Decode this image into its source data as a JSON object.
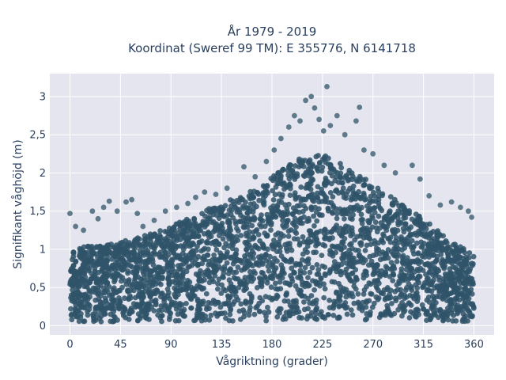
{
  "chart_data": {
    "type": "scatter",
    "title_lines": [
      "År 1979 - 2019",
      "Koordinat (Sweref 99 TM): E 355776, N 6141718"
    ],
    "xlabel": "Vågriktning (grader)",
    "ylabel": "Signifikant våghöjd (m)",
    "xlim": [
      -18,
      378
    ],
    "ylim": [
      -0.12,
      3.3
    ],
    "x_ticks": [
      0,
      45,
      90,
      135,
      180,
      225,
      270,
      315,
      360
    ],
    "x_tick_labels": [
      "0",
      "45",
      "90",
      "135",
      "180",
      "225",
      "270",
      "315",
      "360"
    ],
    "y_ticks": [
      0,
      0.5,
      1,
      1.5,
      2,
      2.5,
      3
    ],
    "y_tick_labels": [
      "0",
      "0,5",
      "1",
      "1,5",
      "2",
      "2,5",
      "3"
    ],
    "grid": true,
    "marker_color": "#2f5468",
    "background_color": "#e5e5ef",
    "envelope": {
      "x": [
        0,
        20,
        45,
        60,
        90,
        110,
        135,
        160,
        180,
        205,
        225,
        250,
        270,
        290,
        315,
        340,
        360
      ],
      "y_min": [
        0.05,
        0.05,
        0.05,
        0.05,
        0.05,
        0.05,
        0.05,
        0.05,
        0.06,
        0.07,
        0.08,
        0.08,
        0.07,
        0.06,
        0.05,
        0.05,
        0.05
      ],
      "y_max": [
        1.0,
        1.05,
        1.1,
        1.15,
        1.3,
        1.45,
        1.6,
        1.75,
        1.95,
        2.2,
        2.25,
        2.05,
        1.85,
        1.65,
        1.4,
        1.1,
        0.95
      ]
    },
    "outliers": [
      {
        "x": 0,
        "y": 1.47
      },
      {
        "x": 5,
        "y": 1.3
      },
      {
        "x": 12,
        "y": 1.25
      },
      {
        "x": 20,
        "y": 1.5
      },
      {
        "x": 25,
        "y": 1.4
      },
      {
        "x": 30,
        "y": 1.55
      },
      {
        "x": 35,
        "y": 1.63
      },
      {
        "x": 42,
        "y": 1.5
      },
      {
        "x": 50,
        "y": 1.62
      },
      {
        "x": 55,
        "y": 1.65
      },
      {
        "x": 60,
        "y": 1.47
      },
      {
        "x": 65,
        "y": 1.3
      },
      {
        "x": 75,
        "y": 1.38
      },
      {
        "x": 85,
        "y": 1.5
      },
      {
        "x": 95,
        "y": 1.55
      },
      {
        "x": 105,
        "y": 1.6
      },
      {
        "x": 112,
        "y": 1.68
      },
      {
        "x": 120,
        "y": 1.75
      },
      {
        "x": 130,
        "y": 1.72
      },
      {
        "x": 140,
        "y": 1.8
      },
      {
        "x": 155,
        "y": 2.08
      },
      {
        "x": 165,
        "y": 1.95
      },
      {
        "x": 175,
        "y": 2.15
      },
      {
        "x": 182,
        "y": 2.3
      },
      {
        "x": 188,
        "y": 2.45
      },
      {
        "x": 195,
        "y": 2.6
      },
      {
        "x": 200,
        "y": 2.75
      },
      {
        "x": 205,
        "y": 2.68
      },
      {
        "x": 210,
        "y": 2.95
      },
      {
        "x": 215,
        "y": 3.0
      },
      {
        "x": 218,
        "y": 2.85
      },
      {
        "x": 222,
        "y": 2.7
      },
      {
        "x": 226,
        "y": 2.55
      },
      {
        "x": 229,
        "y": 3.13
      },
      {
        "x": 232,
        "y": 2.62
      },
      {
        "x": 238,
        "y": 2.75
      },
      {
        "x": 245,
        "y": 2.5
      },
      {
        "x": 255,
        "y": 2.68
      },
      {
        "x": 258,
        "y": 2.86
      },
      {
        "x": 262,
        "y": 2.3
      },
      {
        "x": 270,
        "y": 2.25
      },
      {
        "x": 280,
        "y": 2.1
      },
      {
        "x": 290,
        "y": 2.0
      },
      {
        "x": 305,
        "y": 2.1
      },
      {
        "x": 312,
        "y": 1.92
      },
      {
        "x": 320,
        "y": 1.7
      },
      {
        "x": 330,
        "y": 1.58
      },
      {
        "x": 340,
        "y": 1.62
      },
      {
        "x": 348,
        "y": 1.55
      },
      {
        "x": 355,
        "y": 1.5
      },
      {
        "x": 358,
        "y": 1.42
      }
    ]
  }
}
